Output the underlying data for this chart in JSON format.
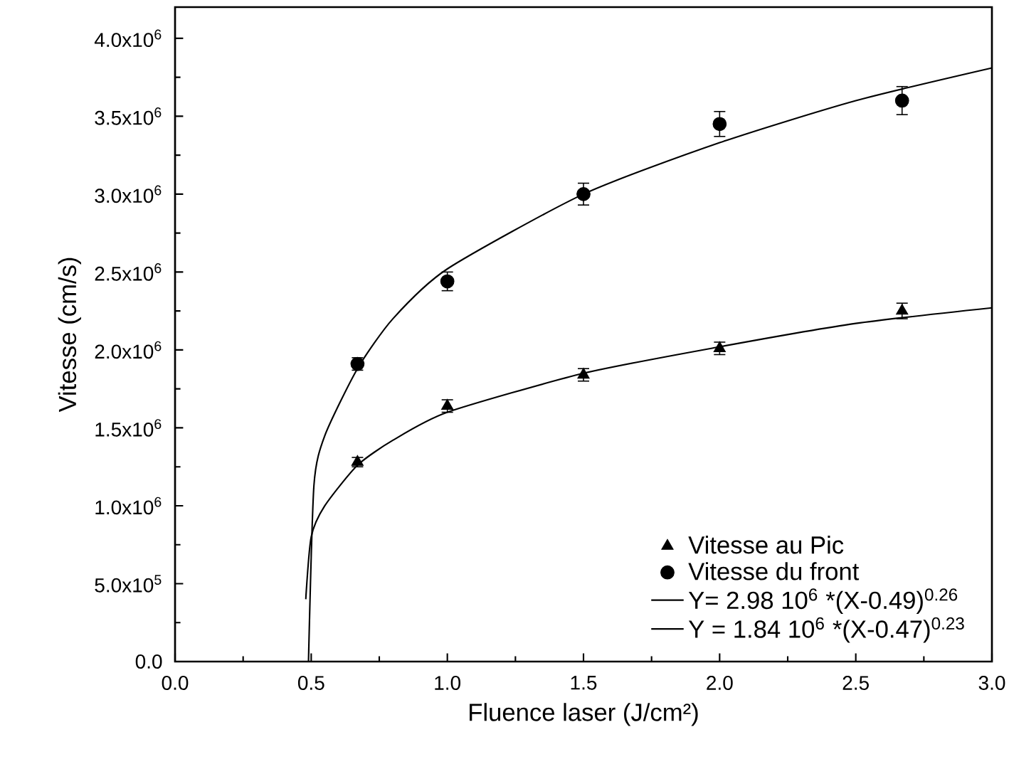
{
  "chart_data": {
    "type": "scatter",
    "xlabel": "Fluence laser (J/cm²)",
    "ylabel": "Vitesse (cm/s)",
    "xlim": [
      0,
      3
    ],
    "ylim": [
      0,
      4200000
    ],
    "xticks": [
      {
        "value": 0,
        "label": "0.0"
      },
      {
        "value": 0.5,
        "label": "0.5"
      },
      {
        "value": 1,
        "label": "1.0"
      },
      {
        "value": 1.5,
        "label": "1.5"
      },
      {
        "value": 2,
        "label": "2.0"
      },
      {
        "value": 2.5,
        "label": "2.5"
      },
      {
        "value": 3,
        "label": "3.0"
      }
    ],
    "yticks": [
      {
        "value": 0,
        "label": "0.0"
      },
      {
        "value": 500000,
        "label": "5.0x10$^{5}$"
      },
      {
        "value": 1000000,
        "label": "1.0x10$^{6}$"
      },
      {
        "value": 1500000,
        "label": "1.5x10$^{6}$"
      },
      {
        "value": 2000000,
        "label": "2.0x10$^{6}$"
      },
      {
        "value": 2500000,
        "label": "2.5x10$^{6}$"
      },
      {
        "value": 3000000,
        "label": "3.0x10$^{6}$"
      },
      {
        "value": 3500000,
        "label": "3.5x10$^{6}$"
      },
      {
        "value": 4000000,
        "label": "4.0x10$^{6}$"
      }
    ],
    "legend": "bottom right",
    "grid": false,
    "series": [
      {
        "name": "Vitesse au Pic",
        "marker": "triangle",
        "color": "#000000",
        "x": [
          0.67,
          1.0,
          1.5,
          2.0,
          2.67
        ],
        "values": [
          1280000,
          1640000,
          1840000,
          2010000,
          2250000
        ],
        "errors": [
          30000,
          40000,
          40000,
          40000,
          50000
        ]
      },
      {
        "name": "Vitesse du front",
        "marker": "circle",
        "color": "#000000",
        "x": [
          0.67,
          1.0,
          1.5,
          2.0,
          2.67
        ],
        "values": [
          1910000,
          2440000,
          3000000,
          3450000,
          3600000
        ],
        "errors": [
          40000,
          60000,
          70000,
          80000,
          90000
        ]
      },
      {
        "name": "Y= 2.98 10$^{6}$ *(X-0.49)$^{0.26}$",
        "type": "line",
        "marker": "none",
        "color": "#000000",
        "x": [
          0.49,
          0.51,
          0.55,
          0.67,
          0.8,
          1.0,
          1.5,
          2.0,
          2.5,
          3.0
        ],
        "values": [
          0,
          1130000,
          1450000,
          1880000,
          2200000,
          2520000,
          3000000,
          3330000,
          3600000,
          3810000
        ]
      },
      {
        "name": "Y = 1.84 10$^{6}$ *(X-0.47)$^{0.23}$",
        "type": "line",
        "marker": "none",
        "color": "#000000",
        "x": [
          0.48,
          0.5,
          0.55,
          0.67,
          0.8,
          1.0,
          1.5,
          2.0,
          2.5,
          3.0
        ],
        "values": [
          400000,
          800000,
          1000000,
          1260000,
          1420000,
          1600000,
          1850000,
          2020000,
          2170000,
          2270000
        ]
      }
    ]
  }
}
